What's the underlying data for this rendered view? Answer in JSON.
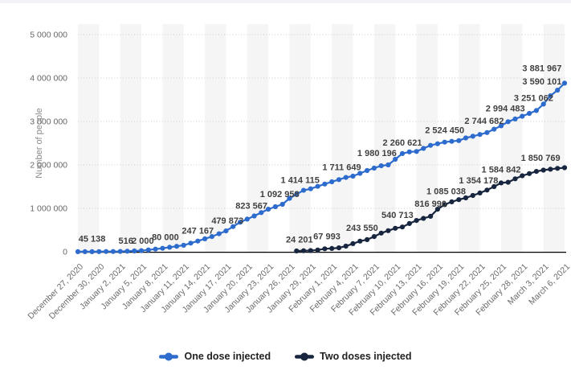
{
  "page": {
    "top_strip_color": "#f1f3f6",
    "background_color": "#ffffff"
  },
  "chart_data": {
    "type": "line",
    "title": "",
    "ylabel": "Number of people",
    "ylim": [
      0,
      5000000
    ],
    "ytick_step": 1000000,
    "y_tick_labels": [
      "0",
      "1 000 000",
      "2 000 000",
      "3 000 000",
      "4 000 000",
      "5 000 000"
    ],
    "grid": "dotted-horizontal",
    "background_bands": "alternating-vertical",
    "legend_position": "bottom",
    "x_tick_every_days": 3,
    "days_total": 70,
    "x_tick_labels": [
      "December 27, 2020",
      "December 30, 2020",
      "January 2, 2021",
      "January 5, 2021",
      "January 8, 2021",
      "January 11, 2021",
      "January 14, 2021",
      "January 17, 2021",
      "January 20, 2021",
      "January 23, 2021",
      "January 26, 2021",
      "January 29, 2021",
      "February 1, 2021",
      "February 4, 2021",
      "February 7, 2021",
      "February 10, 2021",
      "February 13, 2021",
      "February 16, 2021",
      "February 19, 2021",
      "February 22, 2021",
      "February 25, 2021",
      "February 28, 2021",
      "March 3, 2021",
      "March 6, 2021"
    ],
    "colors": {
      "series_one": "#2d6bcd",
      "series_two": "#17263e",
      "stripe": "#f5f5f5",
      "grid": "#cccccc",
      "axis_text": "#6b6b6b",
      "ytick_text": "#666666",
      "data_label_text": "#404040",
      "baseline": "#000000"
    },
    "series": [
      {
        "name": "One dose injected",
        "color_key": "series_one",
        "anchors": [
          [
            0,
            1000
          ],
          [
            3,
            3000
          ],
          [
            6,
            8000
          ],
          [
            9,
            25000
          ],
          [
            12,
            80000
          ],
          [
            15,
            150000
          ],
          [
            17,
            247167
          ],
          [
            19,
            350000
          ],
          [
            21,
            479873
          ],
          [
            23,
            680000
          ],
          [
            25,
            823567
          ],
          [
            27,
            980000
          ],
          [
            29,
            1092958
          ],
          [
            30,
            1230000
          ],
          [
            32,
            1414115
          ],
          [
            33,
            1450000
          ],
          [
            35,
            1560000
          ],
          [
            38,
            1711649
          ],
          [
            39,
            1740000
          ],
          [
            41,
            1870000
          ],
          [
            43,
            1980196
          ],
          [
            44,
            2000000
          ],
          [
            46,
            2260621
          ],
          [
            47,
            2300000
          ],
          [
            48,
            2310000
          ],
          [
            50,
            2450000
          ],
          [
            52,
            2524450
          ],
          [
            54,
            2560000
          ],
          [
            55,
            2620000
          ],
          [
            57,
            2700000
          ],
          [
            58,
            2744682
          ],
          [
            60,
            2900000
          ],
          [
            61,
            2994483
          ],
          [
            63,
            3120000
          ],
          [
            65,
            3251062
          ],
          [
            66,
            3400000
          ],
          [
            67,
            3590101
          ],
          [
            68,
            3720000
          ],
          [
            69,
            3881967
          ]
        ],
        "labels": [
          {
            "text": "45 138",
            "day": 2.0,
            "value": 45138,
            "dy": -10
          },
          {
            "text": "516",
            "day": 6.8,
            "value": 516,
            "dy": -10
          },
          {
            "text": "2 000",
            "day": 9.2,
            "value": 2000,
            "dy": -10
          },
          {
            "text": "80 000",
            "day": 12.4,
            "value": 80000,
            "dy": -10
          },
          {
            "text": "247 167",
            "day": 17.0,
            "value": 247167,
            "dy": -9
          },
          {
            "text": "479 873",
            "day": 21.2,
            "value": 479873,
            "dy": -9
          },
          {
            "text": "823 567",
            "day": 24.6,
            "value": 823567,
            "dy": -9
          },
          {
            "text": "1 092 958",
            "day": 28.6,
            "value": 1092958,
            "dy": -9
          },
          {
            "text": "1 414 115",
            "day": 31.5,
            "value": 1414115,
            "dy": -9
          },
          {
            "text": "1 711 649",
            "day": 37.4,
            "value": 1711649,
            "dy": -9
          },
          {
            "text": "1 980 196",
            "day": 42.4,
            "value": 1980196,
            "dy": -12
          },
          {
            "text": "2 260 621",
            "day": 46.0,
            "value": 2260621,
            "dy": -10
          },
          {
            "text": "2 524 450",
            "day": 52.0,
            "value": 2524450,
            "dy": -11
          },
          {
            "text": "2 744 682",
            "day": 57.6,
            "value": 2744682,
            "dy": -11
          },
          {
            "text": "2 994 483",
            "day": 60.6,
            "value": 2994483,
            "dy": -13
          },
          {
            "text": "3 251 062",
            "day": 64.6,
            "value": 3251062,
            "dy": -12
          },
          {
            "text": "3 590 101",
            "day": 65.8,
            "value": 3590101,
            "dy": -14
          },
          {
            "text": "3 881 967",
            "day": 65.8,
            "value": 3881967,
            "dy": -15
          }
        ]
      },
      {
        "name": "Two doses injected",
        "color_key": "series_two",
        "anchors": [
          [
            31,
            18000
          ],
          [
            32,
            24201
          ],
          [
            33,
            28000
          ],
          [
            34,
            40000
          ],
          [
            35,
            67993
          ],
          [
            36,
            75000
          ],
          [
            37,
            90000
          ],
          [
            38,
            130000
          ],
          [
            40,
            243550
          ],
          [
            41,
            280000
          ],
          [
            42,
            350000
          ],
          [
            43,
            430000
          ],
          [
            45,
            540713
          ],
          [
            46,
            570000
          ],
          [
            47,
            650000
          ],
          [
            48,
            720000
          ],
          [
            50,
            816990
          ],
          [
            51,
            980000
          ],
          [
            52,
            1085038
          ],
          [
            53,
            1150000
          ],
          [
            54,
            1200000
          ],
          [
            55,
            1240000
          ],
          [
            57,
            1354178
          ],
          [
            58,
            1420000
          ],
          [
            59,
            1500000
          ],
          [
            60,
            1584842
          ],
          [
            61,
            1600000
          ],
          [
            62,
            1680000
          ],
          [
            63,
            1750000
          ],
          [
            65,
            1850769
          ],
          [
            66,
            1880000
          ],
          [
            67,
            1900000
          ],
          [
            68,
            1920000
          ],
          [
            69,
            1935000
          ]
        ],
        "labels": [
          {
            "text": "24 201",
            "day": 31.4,
            "value": 24201,
            "dy": -10
          },
          {
            "text": "67 993",
            "day": 35.3,
            "value": 67993,
            "dy": -12
          },
          {
            "text": "243 550",
            "day": 40.3,
            "value": 243550,
            "dy": -13
          },
          {
            "text": "540 713",
            "day": 45.3,
            "value": 540713,
            "dy": -13
          },
          {
            "text": "816 990",
            "day": 50.0,
            "value": 816990,
            "dy": -12
          },
          {
            "text": "1 085 038",
            "day": 52.2,
            "value": 1085038,
            "dy": -13
          },
          {
            "text": "1 354 178",
            "day": 56.8,
            "value": 1354178,
            "dy": -12
          },
          {
            "text": "1 584 842",
            "day": 60.0,
            "value": 1584842,
            "dy": -13
          },
          {
            "text": "1 850 769",
            "day": 65.6,
            "value": 1850769,
            "dy": -13
          }
        ]
      }
    ]
  }
}
